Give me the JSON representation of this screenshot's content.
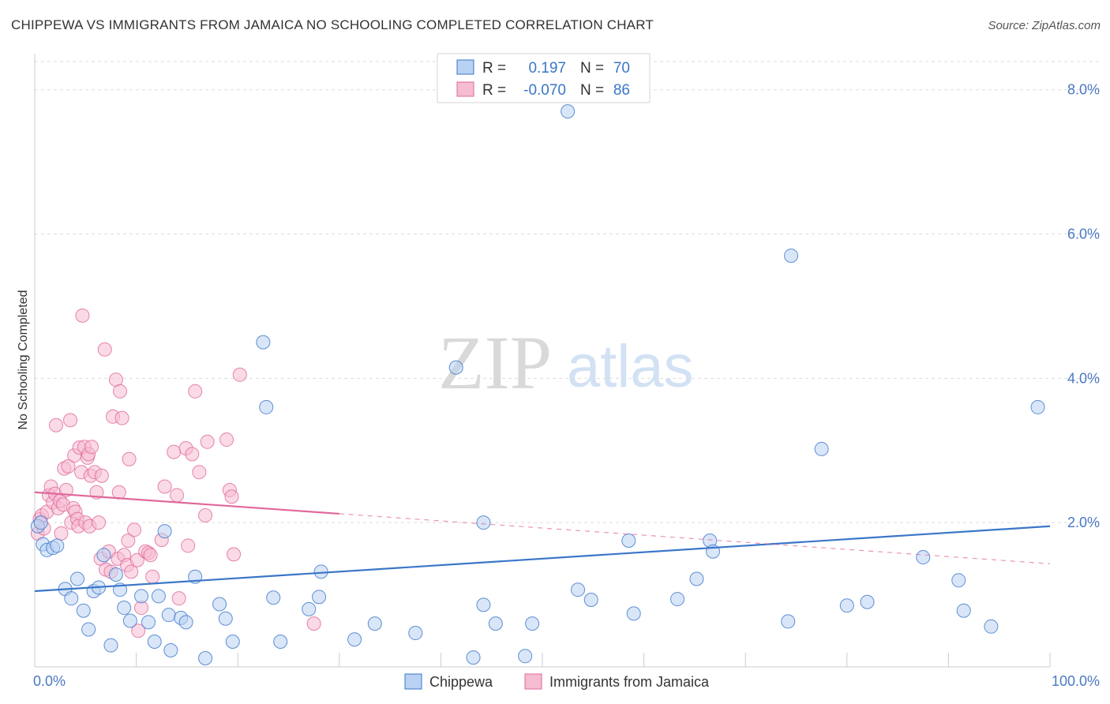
{
  "title": "CHIPPEWA VS IMMIGRANTS FROM JAMAICA NO SCHOOLING COMPLETED CORRELATION CHART",
  "source": "Source: ZipAtlas.com",
  "watermark": {
    "zip": "ZIP",
    "atlas": "atlas"
  },
  "colors": {
    "blue": "#3a76c8",
    "blue_fill": "#b9d2f3",
    "pink": "#e0679a",
    "pink_fill": "#f6bcd1",
    "axis_text": "#4a78c4",
    "grid": "#dddddd"
  },
  "chart_data": {
    "type": "scatter",
    "title": "CHIPPEWA VS IMMIGRANTS FROM JAMAICA NO SCHOOLING COMPLETED CORRELATION CHART",
    "xlabel": "",
    "ylabel": "No Schooling Completed",
    "xlim": [
      0,
      100
    ],
    "ylim": [
      0,
      8.5
    ],
    "x_tick_labels": [
      "0.0%",
      "100.0%"
    ],
    "y_ticks": [
      2,
      4,
      6,
      8
    ],
    "y_tick_labels": [
      "2.0%",
      "4.0%",
      "6.0%",
      "8.0%"
    ],
    "legend": {
      "items": [
        {
          "series": "Chippewa",
          "r_label": "R =",
          "r_value": "0.197",
          "n_label": "N =",
          "n_value": "70"
        },
        {
          "series": "Immigrants from Jamaica",
          "r_label": "R =",
          "r_value": "-0.070",
          "n_label": "N =",
          "n_value": "86"
        }
      ]
    },
    "series": [
      {
        "name": "Chippewa",
        "color": "#3a76c8",
        "trend": {
          "x0": 0,
          "y0": 1.05,
          "x1": 100,
          "y1": 1.95,
          "solid_until": 100
        },
        "points": [
          [
            0.3,
            1.95
          ],
          [
            0.6,
            2.0
          ],
          [
            0.8,
            1.7
          ],
          [
            1.2,
            1.62
          ],
          [
            1.8,
            1.65
          ],
          [
            2.2,
            1.68
          ],
          [
            3,
            1.08
          ],
          [
            3.6,
            0.95
          ],
          [
            4.2,
            1.22
          ],
          [
            4.8,
            0.78
          ],
          [
            5.3,
            0.52
          ],
          [
            5.8,
            1.05
          ],
          [
            6.3,
            1.1
          ],
          [
            6.8,
            1.55
          ],
          [
            7.5,
            0.3
          ],
          [
            8,
            1.28
          ],
          [
            8.4,
            1.07
          ],
          [
            8.8,
            0.82
          ],
          [
            9.4,
            0.64
          ],
          [
            10.5,
            0.98
          ],
          [
            11.2,
            0.62
          ],
          [
            11.8,
            0.35
          ],
          [
            12.2,
            0.98
          ],
          [
            12.8,
            1.88
          ],
          [
            13.2,
            0.72
          ],
          [
            13.4,
            0.23
          ],
          [
            14.4,
            0.68
          ],
          [
            14.9,
            0.62
          ],
          [
            15.8,
            1.25
          ],
          [
            16.8,
            0.12
          ],
          [
            18.2,
            0.87
          ],
          [
            18.8,
            0.67
          ],
          [
            19.5,
            0.35
          ],
          [
            22.5,
            4.5
          ],
          [
            22.8,
            3.6
          ],
          [
            23.5,
            0.96
          ],
          [
            24.2,
            0.35
          ],
          [
            27,
            0.8
          ],
          [
            28,
            0.97
          ],
          [
            28.2,
            1.32
          ],
          [
            31.5,
            0.38
          ],
          [
            33.5,
            0.6
          ],
          [
            37.5,
            0.47
          ],
          [
            41.5,
            4.15
          ],
          [
            43.2,
            0.13
          ],
          [
            44.2,
            2.0
          ],
          [
            44.2,
            0.86
          ],
          [
            45.4,
            0.6
          ],
          [
            48.3,
            0.15
          ],
          [
            49,
            0.6
          ],
          [
            52.5,
            7.7
          ],
          [
            53.5,
            1.07
          ],
          [
            54.8,
            0.93
          ],
          [
            58.5,
            1.75
          ],
          [
            59,
            0.74
          ],
          [
            63.3,
            0.94
          ],
          [
            65.2,
            1.22
          ],
          [
            66.5,
            1.75
          ],
          [
            66.8,
            1.6
          ],
          [
            74.2,
            0.63
          ],
          [
            74.5,
            5.7
          ],
          [
            77.5,
            3.02
          ],
          [
            80,
            0.85
          ],
          [
            82,
            0.9
          ],
          [
            87.5,
            1.52
          ],
          [
            91,
            1.2
          ],
          [
            91.5,
            0.78
          ],
          [
            94.2,
            0.56
          ],
          [
            98.8,
            3.6
          ]
        ]
      },
      {
        "name": "Immigrants from Jamaica",
        "color": "#e0679a",
        "trend": {
          "x0": 0,
          "y0": 2.42,
          "x1": 100,
          "y1": 1.43,
          "solid_until": 30
        },
        "points": [
          [
            0.3,
            1.85
          ],
          [
            0.5,
            2.05
          ],
          [
            0.7,
            2.1
          ],
          [
            0.9,
            1.92
          ],
          [
            1.2,
            2.15
          ],
          [
            1.4,
            2.38
          ],
          [
            1.6,
            2.5
          ],
          [
            1.8,
            2.28
          ],
          [
            2,
            2.4
          ],
          [
            2.1,
            3.35
          ],
          [
            2.3,
            2.2
          ],
          [
            2.5,
            2.3
          ],
          [
            2.6,
            1.85
          ],
          [
            2.8,
            2.25
          ],
          [
            2.9,
            2.75
          ],
          [
            3.1,
            2.45
          ],
          [
            3.3,
            2.78
          ],
          [
            3.5,
            3.42
          ],
          [
            3.6,
            2.0
          ],
          [
            3.8,
            2.2
          ],
          [
            3.9,
            2.93
          ],
          [
            4,
            2.15
          ],
          [
            4.2,
            2.05
          ],
          [
            4.3,
            1.95
          ],
          [
            4.4,
            3.04
          ],
          [
            4.6,
            2.7
          ],
          [
            4.7,
            4.87
          ],
          [
            4.9,
            3.05
          ],
          [
            5,
            2.0
          ],
          [
            5.2,
            2.9
          ],
          [
            5.3,
            2.95
          ],
          [
            5.4,
            1.95
          ],
          [
            5.5,
            2.65
          ],
          [
            5.6,
            3.05
          ],
          [
            5.9,
            2.7
          ],
          [
            6.1,
            2.42
          ],
          [
            6.3,
            2.0
          ],
          [
            6.5,
            1.5
          ],
          [
            6.6,
            2.65
          ],
          [
            6.9,
            4.4
          ],
          [
            7,
            1.35
          ],
          [
            7.3,
            1.6
          ],
          [
            7.5,
            1.32
          ],
          [
            7.7,
            3.47
          ],
          [
            8,
            3.98
          ],
          [
            8.2,
            1.5
          ],
          [
            8.3,
            2.42
          ],
          [
            8.4,
            3.82
          ],
          [
            8.6,
            3.45
          ],
          [
            8.8,
            1.55
          ],
          [
            9.1,
            1.41
          ],
          [
            9.2,
            1.75
          ],
          [
            9.3,
            2.88
          ],
          [
            9.5,
            1.32
          ],
          [
            9.8,
            1.9
          ],
          [
            10.1,
            1.48
          ],
          [
            10.2,
            0.5
          ],
          [
            10.5,
            0.82
          ],
          [
            10.9,
            1.6
          ],
          [
            11.2,
            1.58
          ],
          [
            11.4,
            1.55
          ],
          [
            11.6,
            1.25
          ],
          [
            12.5,
            1.76
          ],
          [
            12.8,
            2.5
          ],
          [
            13.7,
            2.98
          ],
          [
            14,
            2.38
          ],
          [
            14.2,
            0.95
          ],
          [
            14.9,
            3.03
          ],
          [
            15.1,
            1.68
          ],
          [
            15.5,
            2.95
          ],
          [
            15.8,
            3.82
          ],
          [
            16.2,
            2.7
          ],
          [
            16.8,
            2.1
          ],
          [
            17,
            3.12
          ],
          [
            18.9,
            3.15
          ],
          [
            19.2,
            2.45
          ],
          [
            19.4,
            2.36
          ],
          [
            19.6,
            1.56
          ],
          [
            20.2,
            4.05
          ],
          [
            27.5,
            0.6
          ]
        ]
      }
    ]
  }
}
